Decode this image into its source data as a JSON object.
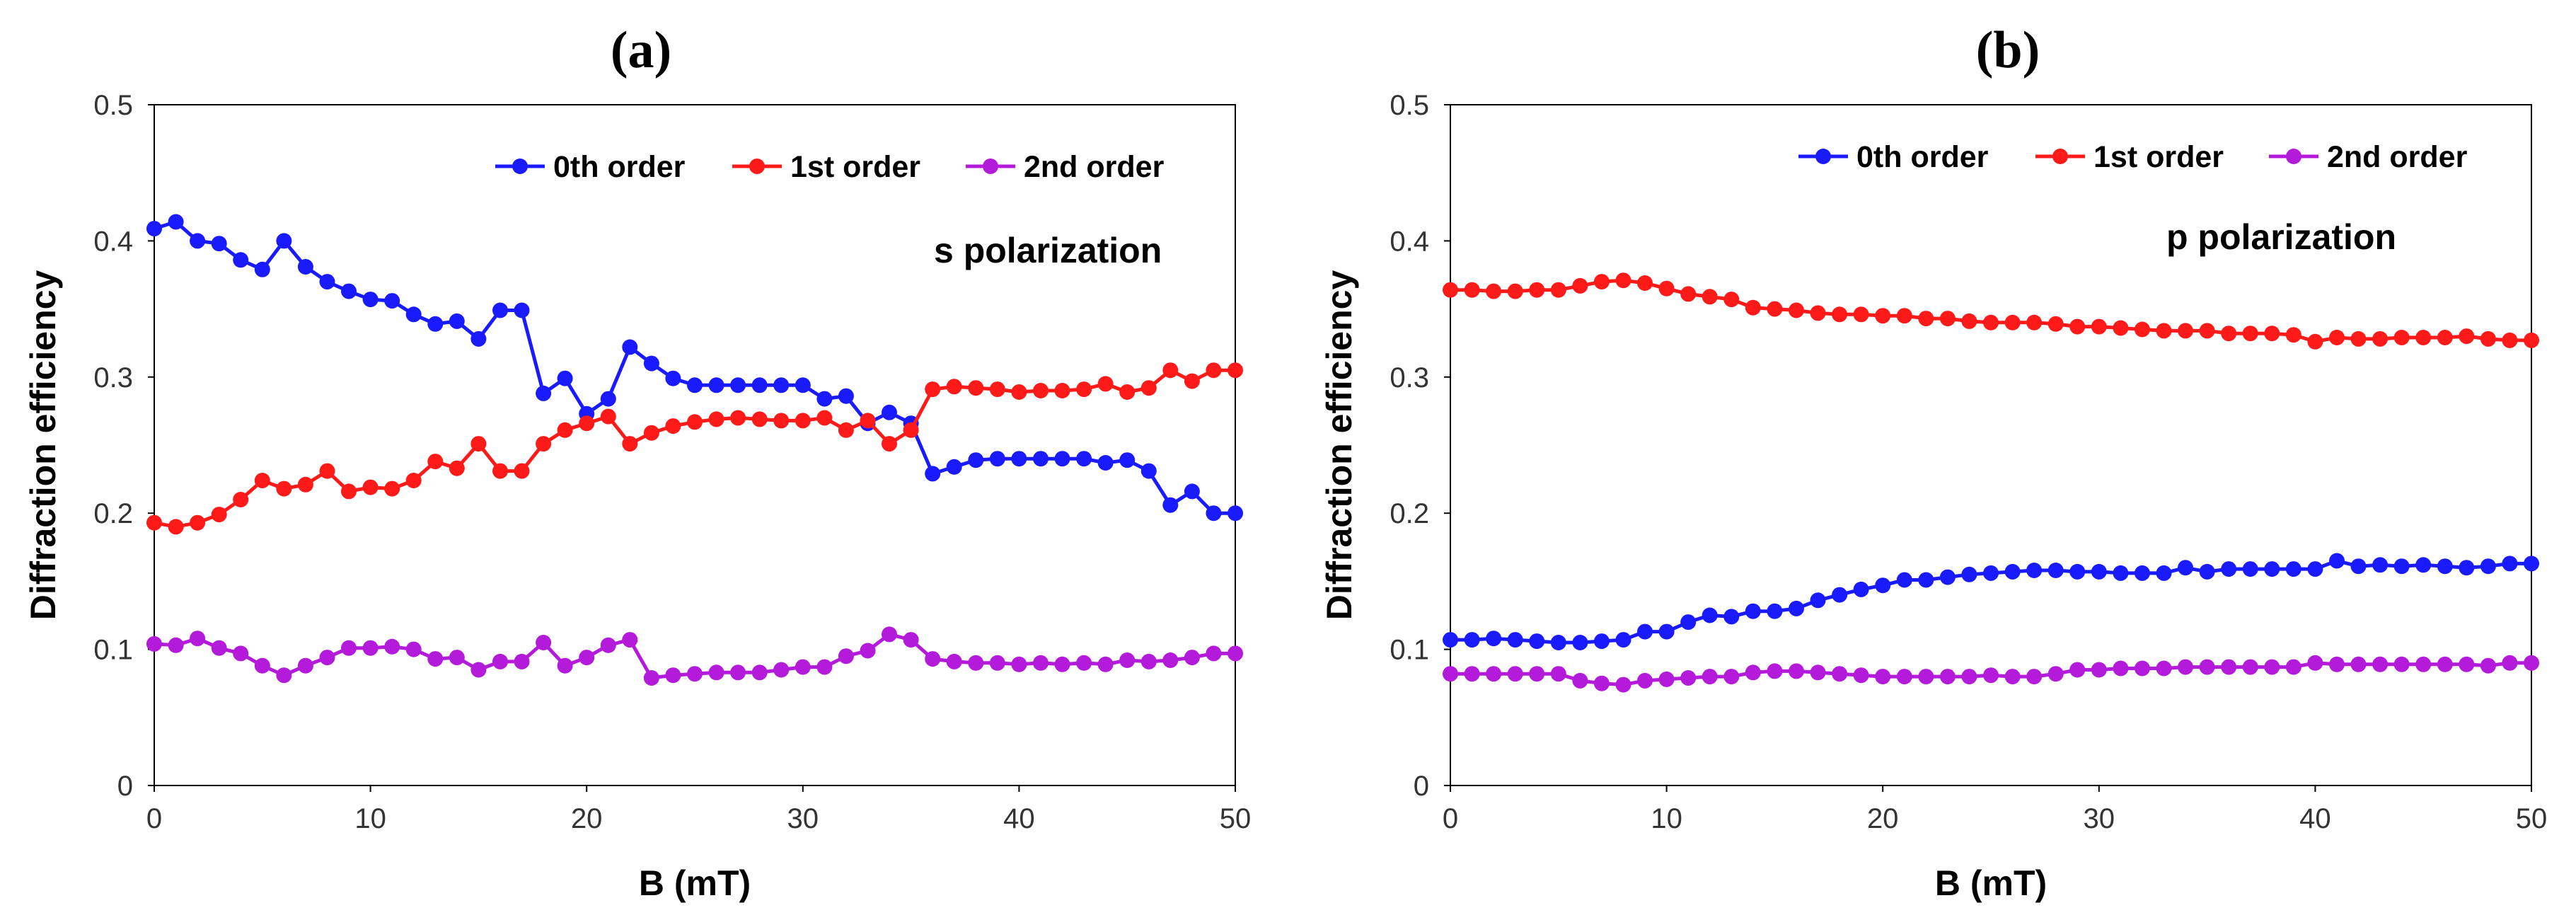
{
  "chart_data": [
    {
      "type": "line",
      "panel": "a",
      "title": "(a)",
      "annotation": "s polarization",
      "xlabel": "B (mT)",
      "ylabel": "Diffraction efficiency",
      "xlim": [
        0,
        50
      ],
      "ylim": [
        0,
        0.5
      ],
      "xticks": [
        0,
        10,
        20,
        30,
        40,
        50
      ],
      "yticks": [
        0,
        0.1,
        0.2,
        0.3,
        0.4,
        0.5
      ],
      "grid": false,
      "legend_position": "top-right",
      "x": [
        0,
        1,
        2,
        3,
        4,
        5,
        6,
        7,
        8,
        9,
        10,
        11,
        12,
        13,
        14,
        15,
        16,
        17,
        18,
        19,
        20,
        21,
        22,
        23,
        24,
        25,
        26,
        27,
        28,
        29,
        30,
        31,
        32,
        33,
        34,
        35,
        36,
        37,
        38,
        39,
        40,
        41,
        42,
        43,
        44,
        45,
        46,
        47,
        48,
        49,
        50
      ],
      "series": [
        {
          "name": "0th order",
          "color": "#1a1aff",
          "values": [
            0.409,
            0.414,
            0.4,
            0.398,
            0.386,
            0.379,
            0.4,
            0.381,
            0.37,
            0.363,
            0.357,
            0.356,
            0.346,
            0.339,
            0.341,
            0.328,
            0.349,
            0.349,
            0.288,
            0.299,
            0.273,
            0.284,
            0.322,
            0.31,
            0.299,
            0.294,
            0.294,
            0.294,
            0.294,
            0.294,
            0.294,
            0.284,
            0.286,
            0.266,
            0.274,
            0.266,
            0.229,
            0.234,
            0.239,
            0.24,
            0.24,
            0.24,
            0.24,
            0.24,
            0.237,
            0.239,
            0.231,
            0.206,
            0.216,
            0.2,
            0.2
          ]
        },
        {
          "name": "1st order",
          "color": "#ff1a1a",
          "values": [
            0.193,
            0.19,
            0.193,
            0.199,
            0.21,
            0.224,
            0.218,
            0.221,
            0.231,
            0.216,
            0.219,
            0.218,
            0.224,
            0.238,
            0.233,
            0.251,
            0.231,
            0.231,
            0.251,
            0.261,
            0.266,
            0.271,
            0.251,
            0.259,
            0.264,
            0.267,
            0.269,
            0.27,
            0.269,
            0.268,
            0.268,
            0.27,
            0.261,
            0.268,
            0.251,
            0.261,
            0.291,
            0.293,
            0.292,
            0.291,
            0.289,
            0.29,
            0.29,
            0.291,
            0.295,
            0.289,
            0.292,
            0.305,
            0.297,
            0.305,
            0.305
          ]
        },
        {
          "name": "2nd order",
          "color": "#b31ad9",
          "values": [
            0.104,
            0.103,
            0.108,
            0.101,
            0.097,
            0.088,
            0.081,
            0.088,
            0.094,
            0.101,
            0.101,
            0.102,
            0.1,
            0.093,
            0.094,
            0.085,
            0.091,
            0.091,
            0.105,
            0.088,
            0.094,
            0.103,
            0.107,
            0.079,
            0.081,
            0.082,
            0.083,
            0.083,
            0.083,
            0.085,
            0.087,
            0.087,
            0.095,
            0.099,
            0.111,
            0.107,
            0.093,
            0.091,
            0.09,
            0.09,
            0.089,
            0.09,
            0.089,
            0.09,
            0.089,
            0.092,
            0.091,
            0.092,
            0.094,
            0.097,
            0.097
          ]
        }
      ]
    },
    {
      "type": "line",
      "panel": "b",
      "title": "(b)",
      "annotation": "p polarization",
      "xlabel": "B (mT)",
      "ylabel": "Diffraction efficiency",
      "xlim": [
        0,
        50
      ],
      "ylim": [
        0,
        0.5
      ],
      "xticks": [
        0,
        10,
        20,
        30,
        40,
        50
      ],
      "yticks": [
        0,
        0.1,
        0.2,
        0.3,
        0.4,
        0.5
      ],
      "grid": false,
      "legend_position": "top-right",
      "x": [
        0,
        1,
        2,
        3,
        4,
        5,
        6,
        7,
        8,
        9,
        10,
        11,
        12,
        13,
        14,
        15,
        16,
        17,
        18,
        19,
        20,
        21,
        22,
        23,
        24,
        25,
        26,
        27,
        28,
        29,
        30,
        31,
        32,
        33,
        34,
        35,
        36,
        37,
        38,
        39,
        40,
        41,
        42,
        43,
        44,
        45,
        46,
        47,
        48,
        49,
        50
      ],
      "series": [
        {
          "name": "0th order",
          "color": "#1a1aff",
          "values": [
            0.107,
            0.107,
            0.108,
            0.107,
            0.106,
            0.105,
            0.105,
            0.106,
            0.107,
            0.113,
            0.113,
            0.12,
            0.125,
            0.124,
            0.128,
            0.128,
            0.13,
            0.136,
            0.14,
            0.144,
            0.147,
            0.151,
            0.151,
            0.153,
            0.155,
            0.156,
            0.157,
            0.158,
            0.158,
            0.157,
            0.157,
            0.156,
            0.156,
            0.156,
            0.16,
            0.157,
            0.159,
            0.159,
            0.159,
            0.159,
            0.159,
            0.165,
            0.161,
            0.162,
            0.161,
            0.162,
            0.161,
            0.16,
            0.161,
            0.163,
            0.163
          ]
        },
        {
          "name": "1st order",
          "color": "#ff1a1a",
          "values": [
            0.364,
            0.364,
            0.363,
            0.363,
            0.364,
            0.364,
            0.367,
            0.37,
            0.371,
            0.369,
            0.365,
            0.361,
            0.359,
            0.357,
            0.351,
            0.35,
            0.349,
            0.347,
            0.346,
            0.346,
            0.345,
            0.345,
            0.343,
            0.343,
            0.341,
            0.34,
            0.34,
            0.34,
            0.339,
            0.337,
            0.337,
            0.336,
            0.335,
            0.334,
            0.334,
            0.334,
            0.332,
            0.332,
            0.332,
            0.331,
            0.326,
            0.329,
            0.328,
            0.328,
            0.329,
            0.329,
            0.329,
            0.33,
            0.328,
            0.327,
            0.327
          ]
        },
        {
          "name": "2nd order",
          "color": "#b31ad9",
          "values": [
            0.082,
            0.082,
            0.082,
            0.082,
            0.082,
            0.082,
            0.077,
            0.075,
            0.074,
            0.077,
            0.078,
            0.079,
            0.08,
            0.08,
            0.083,
            0.084,
            0.084,
            0.083,
            0.082,
            0.081,
            0.08,
            0.08,
            0.08,
            0.08,
            0.08,
            0.081,
            0.08,
            0.08,
            0.082,
            0.085,
            0.085,
            0.086,
            0.086,
            0.086,
            0.087,
            0.087,
            0.087,
            0.087,
            0.087,
            0.087,
            0.09,
            0.089,
            0.089,
            0.089,
            0.089,
            0.089,
            0.089,
            0.089,
            0.088,
            0.09,
            0.09
          ]
        }
      ]
    }
  ]
}
